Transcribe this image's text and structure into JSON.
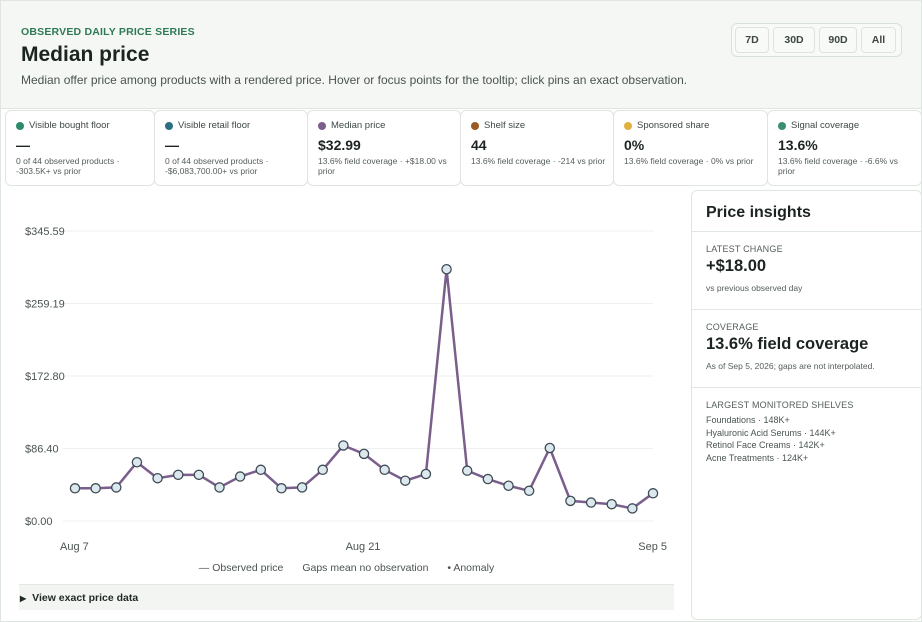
{
  "header": {
    "eyebrow": "OBSERVED DAILY PRICE SERIES",
    "title": "Median price",
    "description": "Median offer price among products with a rendered price. Hover or focus points for the tooltip; click pins an exact observation.",
    "ranges": [
      "7D",
      "30D",
      "90D",
      "All"
    ],
    "active_range": "30D"
  },
  "metrics": [
    {
      "label": "Visible bought floor",
      "color": "#2f8a6a",
      "value": "—",
      "sub": "0 of 44 observed products · -303.5K+ vs prior"
    },
    {
      "label": "Visible retail floor",
      "color": "#2c6f80",
      "value": "—",
      "sub": "0 of 44 observed products · -$6,083,700.00+ vs prior"
    },
    {
      "label": "Median price",
      "color": "#7a5e8c",
      "value": "$32.99",
      "sub": "13.6% field coverage · +$18.00 vs prior"
    },
    {
      "label": "Shelf size",
      "color": "#9a5a24",
      "value": "44",
      "sub": "13.6% field coverage · -214 vs prior"
    },
    {
      "label": "Sponsored share",
      "color": "#e0b040",
      "value": "0%",
      "sub": "13.6% field coverage · 0% vs prior"
    },
    {
      "label": "Signal coverage",
      "color": "#3a8f72",
      "value": "13.6%",
      "sub": "13.6% field coverage · -6.6% vs prior"
    }
  ],
  "chart_data": {
    "type": "line",
    "x_labels": [
      "Aug 7",
      "Aug 21",
      "Sep 5"
    ],
    "y_ticks": [
      "$345.59",
      "$259.19",
      "$172.80",
      "$86.40",
      "$0.00"
    ],
    "y_tick_values": [
      345.59,
      259.19,
      172.8,
      86.4,
      0
    ],
    "ylim": [
      0,
      345.59
    ],
    "grid": true,
    "series": [
      {
        "name": "Observed price",
        "color": "#7a5e8c",
        "values": [
          39,
          39,
          40,
          70,
          51,
          55,
          55,
          40,
          53,
          61,
          39,
          40,
          61,
          90,
          80,
          61,
          48,
          56,
          300,
          60,
          50,
          42,
          36,
          87,
          24,
          22,
          20,
          15,
          33
        ]
      }
    ],
    "legend": [
      "— Observed price",
      "Gaps mean no observation",
      "• Anomaly"
    ]
  },
  "details_label": "View exact price data",
  "insights": {
    "title": "Price insights",
    "latest_caption": "LATEST CHANGE",
    "latest_value": "+$18.00",
    "latest_note": "vs previous observed day",
    "coverage_caption": "COVERAGE",
    "coverage_value": "13.6% field coverage",
    "coverage_note": "As of Sep 5, 2026; gaps are not interpolated.",
    "shelves_caption": "LARGEST MONITORED SHELVES",
    "shelves": [
      "Foundations · 148K+",
      "Hyaluronic Acid Serums · 144K+",
      "Retinol Face Creams · 142K+",
      "Acne Treatments · 124K+"
    ]
  }
}
